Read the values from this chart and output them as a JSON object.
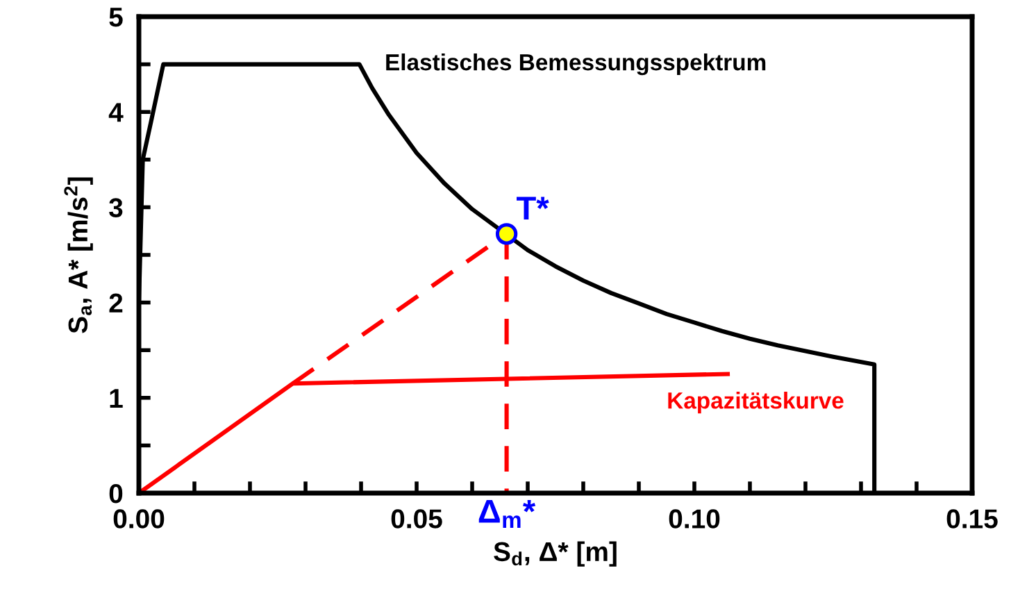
{
  "chart_data": {
    "type": "line",
    "xlabel": "S$_{d}$, Δ* [m]",
    "ylabel": "S$_{a}$, A* [m/s$^{2}$]",
    "xlim": [
      0,
      0.15
    ],
    "ylim": [
      0,
      5
    ],
    "xticks": [
      {
        "value": 0,
        "label": "0.00"
      },
      {
        "value": 0.01,
        "label": null
      },
      {
        "value": 0.02,
        "label": null
      },
      {
        "value": 0.03,
        "label": null
      },
      {
        "value": 0.04,
        "label": null
      },
      {
        "value": 0.05,
        "label": "0.05"
      },
      {
        "value": 0.06,
        "label": null
      },
      {
        "value": 0.07,
        "label": null
      },
      {
        "value": 0.08,
        "label": null
      },
      {
        "value": 0.09,
        "label": null
      },
      {
        "value": 0.1,
        "label": "0.10"
      },
      {
        "value": 0.11,
        "label": null
      },
      {
        "value": 0.12,
        "label": null
      },
      {
        "value": 0.13,
        "label": null
      },
      {
        "value": 0.14,
        "label": null
      },
      {
        "value": 0.15,
        "label": "0.15"
      }
    ],
    "yticks": [
      0,
      {
        "value": 0.5,
        "label": null
      },
      1,
      {
        "value": 1.5,
        "label": null
      },
      2,
      {
        "value": 2.5,
        "label": null
      },
      3,
      {
        "value": 3.5,
        "label": null
      },
      4,
      {
        "value": 4.5,
        "label": null
      },
      5
    ],
    "grid": false,
    "legend": false,
    "series": [
      {
        "color": "#000000",
        "line_style": "solid",
        "x": [
          0,
          0.0007,
          0.0022,
          0.0044,
          0.0397,
          0.042,
          0.045,
          0.05,
          0.055,
          0.06,
          0.07,
          0.075,
          0.08,
          0.085,
          0.09,
          0.095,
          0.1,
          0.105,
          0.11,
          0.115,
          0.12,
          0.125,
          0.1324,
          0.1324
        ],
        "values": [
          2.0,
          3.5,
          3.9,
          4.5,
          4.5,
          4.25,
          3.97,
          3.57,
          3.25,
          2.98,
          2.55,
          2.38,
          2.23,
          2.1,
          1.99,
          1.88,
          1.79,
          1.7,
          1.62,
          1.55,
          1.49,
          1.43,
          1.35,
          0
        ]
      },
      {
        "color": "#ff0000",
        "line_style": "solid",
        "x": [
          0,
          0.0277,
          0.106
        ],
        "values": [
          0,
          1.15,
          1.25
        ]
      },
      {
        "color": "#ff0000",
        "line_style": "dashed",
        "x": [
          0.0277,
          0.0662
        ],
        "values": [
          1.15,
          2.72
        ]
      },
      {
        "color": "#ff0000",
        "line_style": "dashed",
        "x": [
          0.0662,
          0.0662
        ],
        "values": [
          2.72,
          0
        ]
      },
      {
        "type": "scatter",
        "color": "#ffff00",
        "marker": "circle",
        "x": [
          0.0662
        ],
        "values": [
          2.72
        ]
      }
    ],
    "annotations": [
      "Elastisches Bemessungsspektrum",
      "Kapazitätskurve",
      {
        "text": "T*",
        "x": 0.0662,
        "y": 2.72
      },
      {
        "text": "Δ$_{m}$*",
        "x": 0.0662,
        "y": 0
      }
    ]
  }
}
